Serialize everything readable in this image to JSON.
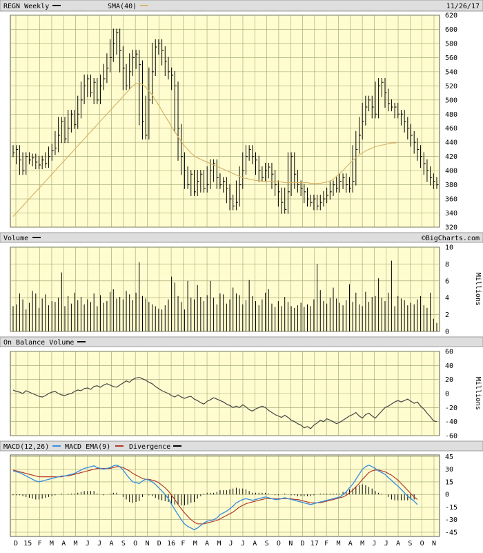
{
  "header": {
    "ticker_label": "REGN Weekly",
    "sma_label": "SMA(40)",
    "date": "11/26/17",
    "watermark": "©BigCharts.com"
  },
  "panels": {
    "volume_title": "Volume",
    "obv_title": "On Balance Volume",
    "macd_title": "MACD(12,26)",
    "macd_ema_label": "MACD EMA(9)",
    "divergence_label": "Divergence",
    "volume_unit": "Millions",
    "obv_unit": "Millions"
  },
  "colors": {
    "price": "#000000",
    "sma": "#d8b46a",
    "macd": "#3d8fe0",
    "macd_ema": "#b23a2a",
    "divergence": "#000000",
    "plot_bg": "#fffdd0"
  },
  "chart_data": [
    {
      "type": "line",
      "name": "price",
      "x_tick_labels": [
        "D",
        "15",
        "F",
        "M",
        "A",
        "M",
        "J",
        "J",
        "A",
        "S",
        "O",
        "N",
        "D",
        "16",
        "F",
        "M",
        "A",
        "M",
        "J",
        "J",
        "A",
        "S",
        "O",
        "N",
        "D",
        "17",
        "F",
        "M",
        "A",
        "M",
        "J",
        "J",
        "A",
        "S",
        "O",
        "N"
      ],
      "y_ticks": [
        320,
        340,
        360,
        380,
        400,
        420,
        440,
        460,
        480,
        500,
        520,
        540,
        560,
        580,
        600,
        620
      ],
      "ylim": [
        320,
        620
      ],
      "series": [
        {
          "name": "REGN Weekly",
          "values": [
            425,
            430,
            415,
            400,
            420,
            415,
            418,
            412,
            408,
            415,
            410,
            420,
            428,
            432,
            450,
            470,
            445,
            460,
            480,
            465,
            480,
            500,
            520,
            530,
            510,
            525,
            500,
            520,
            530,
            545,
            560,
            580,
            595,
            570,
            545,
            520,
            540,
            560,
            565,
            550,
            470,
            450,
            500,
            540,
            575,
            580,
            570,
            555,
            540,
            535,
            520,
            460,
            420,
            400,
            380,
            395,
            370,
            385,
            395,
            375,
            380,
            400,
            410,
            390,
            380,
            385,
            375,
            360,
            350,
            355,
            380,
            400,
            420,
            430,
            420,
            415,
            400,
            390,
            400,
            405,
            395,
            380,
            370,
            355,
            345,
            370,
            420,
            395,
            380,
            375,
            370,
            360,
            355,
            360,
            350,
            355,
            360,
            365,
            370,
            380,
            375,
            385,
            390,
            380,
            375,
            385,
            430,
            450,
            470,
            490,
            500,
            490,
            480,
            520,
            525,
            510,
            495,
            490,
            490,
            480,
            480,
            470,
            460,
            450,
            440,
            430,
            420,
            410,
            400,
            390,
            385,
            380
          ]
        },
        {
          "name": "SMA(40)",
          "values": [
            335,
            340,
            345,
            350,
            355,
            360,
            365,
            370,
            375,
            380,
            385,
            390,
            395,
            400,
            405,
            410,
            415,
            420,
            425,
            430,
            435,
            440,
            445,
            450,
            455,
            460,
            465,
            470,
            475,
            480,
            485,
            490,
            495,
            500,
            505,
            510,
            515,
            520,
            523,
            524,
            522,
            518,
            513,
            507,
            500,
            493,
            485,
            477,
            470,
            462,
            455,
            448,
            441,
            435,
            430,
            425,
            421,
            418,
            416,
            414,
            412,
            410,
            408,
            406,
            404,
            402,
            400,
            398,
            396,
            394,
            392,
            390,
            389,
            388,
            387,
            386,
            386,
            385,
            385,
            385,
            385,
            384,
            384,
            384,
            383,
            383,
            383,
            383,
            383,
            383,
            383,
            383,
            382,
            382,
            382,
            382,
            383,
            384,
            385,
            388,
            392,
            396,
            400,
            405,
            410,
            414,
            418,
            422,
            425,
            428,
            430,
            432,
            434,
            435,
            436,
            437,
            438,
            439,
            439,
            440
          ]
        }
      ]
    },
    {
      "type": "bar",
      "name": "volume",
      "ylabel": "Millions",
      "y_ticks": [
        0,
        2,
        4,
        6,
        8,
        10
      ],
      "ylim": [
        0,
        10
      ],
      "values": [
        3.0,
        3.2,
        4.5,
        3.8,
        2.6,
        3.4,
        4.8,
        4.5,
        2.8,
        3.9,
        4.4,
        3.1,
        3.6,
        3.5,
        4.0,
        7.0,
        3.0,
        4.2,
        3.3,
        4.6,
        3.7,
        4.1,
        3.2,
        3.8,
        3.5,
        4.5,
        3.0,
        4.3,
        3.4,
        3.6,
        4.7,
        5.0,
        3.9,
        4.1,
        3.8,
        4.8,
        4.4,
        3.7,
        4.6,
        8.2,
        4.2,
        3.9,
        3.5,
        3.2,
        3.0,
        2.7,
        2.6,
        3.1,
        3.8,
        6.5,
        5.8,
        4.2,
        3.5,
        2.6,
        6.0,
        4.0,
        3.8,
        5.5,
        4.1,
        3.6,
        4.3,
        6.0,
        4.0,
        3.2,
        4.5,
        4.4,
        3.3,
        3.8,
        5.2,
        4.5,
        4.3,
        3.2,
        3.7,
        6.1,
        4.2,
        3.6,
        3.1,
        3.8,
        4.6,
        5.0,
        3.3,
        2.9,
        3.6,
        3.0,
        4.1,
        3.5,
        3.0,
        2.8,
        3.1,
        3.4,
        2.9,
        3.2,
        3.0,
        3.8,
        8.0,
        4.9,
        3.6,
        3.3,
        4.0,
        5.2,
        3.9,
        3.4,
        3.1,
        3.7,
        5.6,
        3.5,
        4.6,
        3.2,
        3.0,
        4.7,
        3.5,
        4.1,
        4.2,
        6.3,
        4.0,
        3.6,
        4.6,
        8.4,
        3.0,
        4.2,
        3.9,
        3.7,
        3.1,
        3.4,
        3.2,
        3.8,
        4.2,
        3.1,
        2.8,
        4.6,
        1.5,
        1.0
      ]
    },
    {
      "type": "line",
      "name": "on_balance_volume",
      "ylabel": "Millions",
      "y_ticks": [
        60,
        40,
        20,
        0,
        -20,
        -40,
        -60
      ],
      "ylim": [
        -60,
        60
      ],
      "values": [
        5,
        3,
        2,
        0,
        4,
        2,
        0,
        -2,
        -4,
        -5,
        -3,
        0,
        2,
        3,
        0,
        -2,
        -3,
        -1,
        0,
        3,
        5,
        4,
        7,
        8,
        6,
        10,
        11,
        9,
        12,
        14,
        12,
        10,
        9,
        12,
        15,
        18,
        16,
        20,
        22,
        23,
        21,
        19,
        16,
        14,
        10,
        7,
        4,
        2,
        0,
        -3,
        -5,
        -2,
        -5,
        -7,
        -5,
        -4,
        -8,
        -10,
        -13,
        -15,
        -11,
        -9,
        -6,
        -8,
        -10,
        -12,
        -15,
        -17,
        -20,
        -18,
        -20,
        -16,
        -19,
        -23,
        -25,
        -22,
        -20,
        -18,
        -20,
        -24,
        -27,
        -30,
        -32,
        -34,
        -31,
        -34,
        -38,
        -40,
        -43,
        -45,
        -49,
        -47,
        -50,
        -45,
        -42,
        -38,
        -40,
        -36,
        -38,
        -40,
        -43,
        -41,
        -38,
        -35,
        -32,
        -30,
        -27,
        -32,
        -35,
        -30,
        -28,
        -32,
        -35,
        -30,
        -25,
        -20,
        -18,
        -15,
        -12,
        -10,
        -12,
        -10,
        -8,
        -11,
        -14,
        -12,
        -18,
        -22,
        -28,
        -33,
        -39,
        -40
      ]
    },
    {
      "type": "line",
      "name": "macd",
      "y_ticks": [
        45,
        30,
        15,
        0,
        -15,
        -30,
        -45
      ],
      "ylim": [
        -50,
        47
      ],
      "series": [
        {
          "name": "MACD(12,26)",
          "values": [
            28,
            27,
            26,
            24,
            22,
            20,
            18,
            16,
            15,
            16,
            17,
            18,
            19,
            20,
            21,
            22,
            22,
            23,
            24,
            25,
            27,
            29,
            31,
            32,
            33,
            34,
            32,
            31,
            30,
            31,
            32,
            34,
            35,
            33,
            29,
            24,
            19,
            15,
            14,
            13,
            16,
            18,
            17,
            15,
            12,
            8,
            4,
            0,
            -5,
            -12,
            -18,
            -24,
            -30,
            -35,
            -38,
            -40,
            -42,
            -40,
            -37,
            -34,
            -32,
            -31,
            -30,
            -28,
            -24,
            -22,
            -20,
            -17,
            -14,
            -10,
            -8,
            -6,
            -5,
            -6,
            -7,
            -6,
            -5,
            -4,
            -3,
            -4,
            -5,
            -6,
            -6,
            -5,
            -4,
            -5,
            -6,
            -7,
            -8,
            -9,
            -10,
            -11,
            -12,
            -11,
            -10,
            -9,
            -8,
            -7,
            -6,
            -5,
            -4,
            -3,
            0,
            3,
            8,
            12,
            18,
            24,
            30,
            33,
            35,
            33,
            31,
            28,
            26,
            24,
            20,
            17,
            13,
            10,
            6,
            2,
            -2,
            -5,
            -8,
            -12
          ]
        },
        {
          "name": "MACD EMA(9)",
          "values": [
            29,
            28,
            27,
            26,
            25,
            24,
            23,
            22,
            21,
            21,
            21,
            21,
            21,
            21,
            21,
            21,
            22,
            22,
            23,
            24,
            25,
            26,
            27,
            28,
            29,
            30,
            31,
            31,
            31,
            31,
            31,
            32,
            33,
            33,
            32,
            30,
            28,
            25,
            23,
            21,
            19,
            18,
            18,
            17,
            16,
            14,
            11,
            8,
            4,
            -1,
            -6,
            -12,
            -17,
            -22,
            -26,
            -30,
            -33,
            -35,
            -35,
            -35,
            -34,
            -33,
            -32,
            -31,
            -29,
            -27,
            -25,
            -23,
            -21,
            -18,
            -15,
            -13,
            -11,
            -10,
            -9,
            -8,
            -7,
            -6,
            -5,
            -5,
            -5,
            -5,
            -5,
            -5,
            -5,
            -5,
            -5,
            -6,
            -6,
            -7,
            -8,
            -9,
            -10,
            -10,
            -10,
            -10,
            -9,
            -8,
            -7,
            -6,
            -5,
            -4,
            -3,
            -1,
            2,
            5,
            9,
            13,
            18,
            22,
            26,
            28,
            29,
            29,
            28,
            27,
            25,
            23,
            20,
            17,
            13,
            9,
            5,
            1,
            -3,
            -6
          ]
        },
        {
          "name": "Divergence",
          "values": [
            -1,
            -1,
            -1,
            -2,
            -3,
            -4,
            -5,
            -6,
            -6,
            -5,
            -4,
            -3,
            -2,
            -1,
            0,
            1,
            0,
            1,
            1,
            1,
            2,
            3,
            4,
            4,
            4,
            4,
            1,
            0,
            -1,
            0,
            1,
            2,
            2,
            0,
            -3,
            -6,
            -9,
            -10,
            -9,
            -8,
            -3,
            0,
            -1,
            -2,
            -4,
            -6,
            -7,
            -8,
            -9,
            -11,
            -12,
            -12,
            -13,
            -13,
            -12,
            -10,
            -9,
            -5,
            -2,
            1,
            2,
            2,
            2,
            3,
            5,
            5,
            5,
            6,
            7,
            8,
            7,
            7,
            6,
            4,
            2,
            2,
            2,
            2,
            2,
            1,
            0,
            -1,
            -1,
            0,
            1,
            0,
            -1,
            -1,
            -2,
            -2,
            -2,
            -2,
            -2,
            -1,
            0,
            1,
            1,
            1,
            1,
            1,
            1,
            1,
            3,
            4,
            6,
            7,
            9,
            11,
            12,
            11,
            9,
            7,
            4,
            2,
            1,
            0,
            -3,
            -6,
            -7,
            -7,
            -7,
            -7,
            -7,
            -6,
            -6
          ]
        }
      ]
    }
  ]
}
